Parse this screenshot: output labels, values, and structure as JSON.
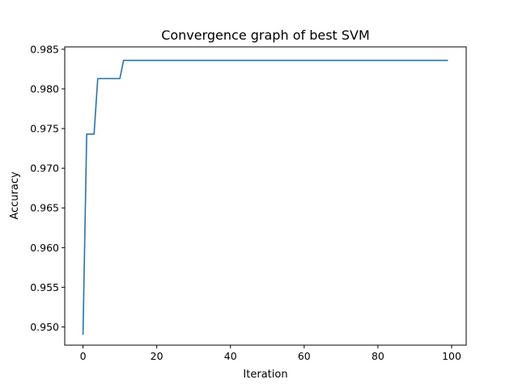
{
  "chart_data": {
    "type": "line",
    "title": "Convergence graph of best SVM",
    "xlabel": "Iteration",
    "ylabel": "Accuracy",
    "xlim": [
      -4.95,
      103.95
    ],
    "ylim": [
      0.9477,
      0.9853
    ],
    "xticks": [
      0,
      20,
      40,
      60,
      80,
      100
    ],
    "yticks": [
      0.95,
      0.955,
      0.96,
      0.965,
      0.97,
      0.975,
      0.98,
      0.985
    ],
    "grid": false,
    "color": "#1f77b4",
    "series": [
      {
        "x": [
          0,
          1,
          2,
          3,
          4,
          5,
          6,
          7,
          8,
          9,
          10,
          11,
          12,
          20,
          30,
          40,
          50,
          60,
          70,
          80,
          90,
          99
        ],
        "values": [
          0.949,
          0.9743,
          0.9743,
          0.9743,
          0.9813,
          0.9813,
          0.9813,
          0.9813,
          0.9813,
          0.9813,
          0.9813,
          0.9836,
          0.9836,
          0.9836,
          0.9836,
          0.9836,
          0.9836,
          0.9836,
          0.9836,
          0.9836,
          0.9836,
          0.9836
        ]
      }
    ]
  }
}
